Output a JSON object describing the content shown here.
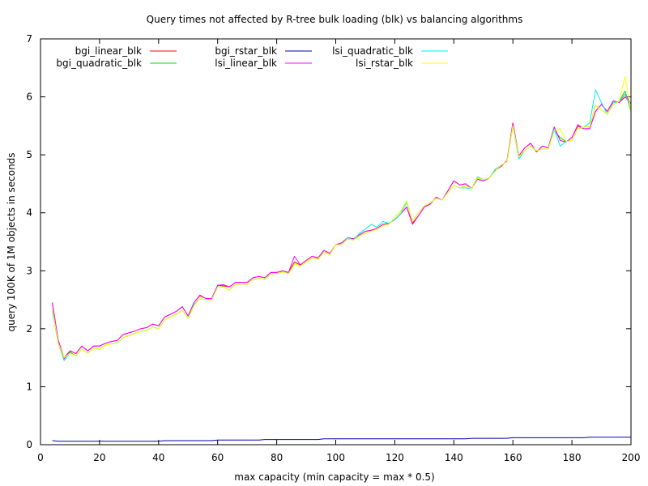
{
  "chart_data": {
    "type": "line",
    "title": "Query times not affected by R-tree bulk loading (blk) vs balancing algorithms",
    "xlabel": "max capacity (min capacity = max * 0.5)",
    "ylabel": "query 100K of 1M objects in seconds",
    "xlim": [
      0,
      200
    ],
    "ylim": [
      0,
      7
    ],
    "xticks": [
      0,
      20,
      40,
      60,
      80,
      100,
      120,
      140,
      160,
      180,
      200
    ],
    "yticks": [
      0,
      1,
      2,
      3,
      4,
      5,
      6,
      7
    ],
    "grid": false,
    "legend_position": "top-left",
    "x": [
      4,
      6,
      8,
      10,
      12,
      14,
      16,
      18,
      20,
      22,
      24,
      26,
      28,
      30,
      32,
      34,
      36,
      38,
      40,
      42,
      44,
      46,
      48,
      50,
      52,
      54,
      56,
      58,
      60,
      62,
      64,
      66,
      68,
      70,
      72,
      74,
      76,
      78,
      80,
      82,
      84,
      86,
      88,
      90,
      92,
      94,
      96,
      98,
      100,
      102,
      104,
      106,
      108,
      110,
      112,
      114,
      116,
      118,
      120,
      122,
      124,
      126,
      128,
      130,
      132,
      134,
      136,
      138,
      140,
      142,
      144,
      146,
      148,
      150,
      152,
      154,
      156,
      158,
      160,
      162,
      164,
      166,
      168,
      170,
      172,
      174,
      176,
      178,
      180,
      182,
      184,
      186,
      188,
      190,
      192,
      194,
      196,
      198,
      200
    ],
    "series": [
      {
        "name": "bgi_linear_blk",
        "color": "#ff0000",
        "values": [
          2.45,
          1.8,
          1.5,
          1.62,
          1.57,
          1.7,
          1.62,
          1.7,
          1.7,
          1.75,
          1.78,
          1.8,
          1.9,
          1.93,
          1.96,
          2.0,
          2.02,
          2.08,
          2.05,
          2.2,
          2.25,
          2.3,
          2.38,
          2.22,
          2.45,
          2.57,
          2.52,
          2.52,
          2.75,
          2.74,
          2.72,
          2.8,
          2.8,
          2.8,
          2.88,
          2.9,
          2.88,
          2.97,
          2.97,
          3.0,
          2.97,
          3.15,
          3.1,
          3.18,
          3.25,
          3.22,
          3.35,
          3.3,
          3.45,
          3.48,
          3.57,
          3.55,
          3.62,
          3.68,
          3.7,
          3.73,
          3.8,
          3.82,
          3.88,
          3.98,
          4.1,
          3.82,
          3.95,
          4.1,
          4.15,
          4.27,
          4.22,
          4.38,
          4.55,
          4.48,
          4.5,
          4.42,
          4.58,
          4.55,
          4.6,
          4.73,
          4.8,
          4.9,
          5.55,
          4.98,
          5.12,
          5.2,
          5.05,
          5.15,
          5.12,
          5.48,
          5.25,
          5.22,
          5.3,
          5.5,
          5.45,
          5.45,
          5.75,
          5.87,
          5.75,
          5.93,
          5.9,
          6.0,
          5.88
        ]
      },
      {
        "name": "bgi_quadratic_blk",
        "color": "#00dd00",
        "values": [
          2.35,
          1.75,
          1.5,
          1.6,
          1.53,
          1.65,
          1.58,
          1.67,
          1.65,
          1.72,
          1.74,
          1.76,
          1.85,
          1.88,
          1.92,
          1.95,
          1.97,
          2.03,
          2.0,
          2.15,
          2.2,
          2.25,
          2.32,
          2.18,
          2.4,
          2.52,
          2.5,
          2.5,
          2.72,
          2.72,
          2.67,
          2.77,
          2.77,
          2.77,
          2.85,
          2.87,
          2.85,
          2.95,
          2.95,
          2.98,
          2.95,
          3.12,
          3.08,
          3.15,
          3.22,
          3.2,
          3.32,
          3.28,
          3.45,
          3.45,
          3.55,
          3.53,
          3.6,
          3.65,
          3.68,
          3.72,
          3.78,
          3.8,
          3.92,
          4.02,
          4.2,
          3.85,
          4.0,
          4.12,
          4.17,
          4.25,
          4.22,
          4.35,
          4.48,
          4.43,
          4.47,
          4.42,
          4.6,
          4.57,
          4.6,
          4.72,
          4.82,
          4.88,
          5.5,
          4.97,
          5.07,
          5.15,
          5.07,
          5.1,
          5.1,
          5.42,
          5.3,
          5.23,
          5.25,
          5.45,
          5.48,
          5.48,
          5.85,
          5.78,
          5.7,
          5.87,
          5.92,
          6.1,
          5.75
        ]
      },
      {
        "name": "bgi_rstar_blk",
        "color": "#0000aa",
        "values": [
          0.07,
          0.06,
          0.06,
          0.06,
          0.06,
          0.06,
          0.06,
          0.06,
          0.06,
          0.06,
          0.06,
          0.06,
          0.06,
          0.06,
          0.06,
          0.06,
          0.06,
          0.06,
          0.06,
          0.07,
          0.07,
          0.07,
          0.07,
          0.07,
          0.07,
          0.07,
          0.07,
          0.07,
          0.08,
          0.08,
          0.08,
          0.08,
          0.08,
          0.08,
          0.08,
          0.08,
          0.09,
          0.09,
          0.09,
          0.09,
          0.09,
          0.09,
          0.09,
          0.09,
          0.09,
          0.09,
          0.1,
          0.1,
          0.1,
          0.1,
          0.1,
          0.1,
          0.1,
          0.1,
          0.1,
          0.1,
          0.1,
          0.1,
          0.1,
          0.1,
          0.1,
          0.1,
          0.1,
          0.1,
          0.1,
          0.1,
          0.1,
          0.1,
          0.1,
          0.1,
          0.1,
          0.11,
          0.11,
          0.11,
          0.11,
          0.11,
          0.11,
          0.11,
          0.12,
          0.12,
          0.12,
          0.12,
          0.12,
          0.12,
          0.12,
          0.12,
          0.12,
          0.12,
          0.12,
          0.12,
          0.12,
          0.13,
          0.13,
          0.13,
          0.13,
          0.13,
          0.13,
          0.13,
          0.13
        ]
      },
      {
        "name": "lsi_linear_blk",
        "color": "#ff00ff",
        "values": [
          2.45,
          1.8,
          1.48,
          1.62,
          1.57,
          1.7,
          1.62,
          1.7,
          1.7,
          1.75,
          1.78,
          1.8,
          1.9,
          1.93,
          1.96,
          2.0,
          2.02,
          2.08,
          2.05,
          2.2,
          2.25,
          2.3,
          2.38,
          2.22,
          2.45,
          2.58,
          2.52,
          2.52,
          2.75,
          2.76,
          2.72,
          2.8,
          2.8,
          2.8,
          2.88,
          2.9,
          2.88,
          2.97,
          2.97,
          3.0,
          2.97,
          3.25,
          3.1,
          3.18,
          3.25,
          3.22,
          3.35,
          3.3,
          3.45,
          3.48,
          3.57,
          3.55,
          3.62,
          3.68,
          3.7,
          3.73,
          3.8,
          3.82,
          3.88,
          3.98,
          4.1,
          3.8,
          3.95,
          4.1,
          4.15,
          4.27,
          4.22,
          4.38,
          4.55,
          4.48,
          4.5,
          4.42,
          4.58,
          4.55,
          4.6,
          4.73,
          4.8,
          4.9,
          5.55,
          4.98,
          5.12,
          5.2,
          5.05,
          5.15,
          5.12,
          5.48,
          5.25,
          5.22,
          5.3,
          5.52,
          5.45,
          5.45,
          5.75,
          5.87,
          5.75,
          5.93,
          5.9,
          6.05,
          5.88
        ]
      },
      {
        "name": "lsi_quadratic_blk",
        "color": "#00eeee",
        "values": [
          2.3,
          1.75,
          1.45,
          1.58,
          1.53,
          1.65,
          1.58,
          1.67,
          1.65,
          1.72,
          1.74,
          1.76,
          1.85,
          1.88,
          1.92,
          1.95,
          1.97,
          2.03,
          2.0,
          2.15,
          2.2,
          2.25,
          2.32,
          2.18,
          2.42,
          2.52,
          2.5,
          2.5,
          2.72,
          2.72,
          2.67,
          2.77,
          2.77,
          2.77,
          2.85,
          2.87,
          2.85,
          2.95,
          2.95,
          2.98,
          2.95,
          3.12,
          3.08,
          3.15,
          3.22,
          3.2,
          3.32,
          3.28,
          3.45,
          3.45,
          3.57,
          3.53,
          3.65,
          3.72,
          3.8,
          3.75,
          3.85,
          3.82,
          3.88,
          3.98,
          4.18,
          3.85,
          4.0,
          4.12,
          4.17,
          4.25,
          4.22,
          4.35,
          4.48,
          4.43,
          4.43,
          4.42,
          4.62,
          4.57,
          4.6,
          4.75,
          4.82,
          4.88,
          5.5,
          4.93,
          5.07,
          5.15,
          5.07,
          5.1,
          5.1,
          5.45,
          5.15,
          5.23,
          5.25,
          5.45,
          5.48,
          5.55,
          6.12,
          5.9,
          5.7,
          5.9,
          5.92,
          6.05,
          5.8
        ]
      },
      {
        "name": "lsi_rstar_blk",
        "color": "#ffff00",
        "values": [
          2.35,
          1.75,
          1.5,
          1.58,
          1.53,
          1.65,
          1.58,
          1.67,
          1.65,
          1.72,
          1.74,
          1.76,
          1.85,
          1.88,
          1.92,
          1.95,
          1.97,
          2.03,
          2.0,
          2.15,
          2.2,
          2.25,
          2.32,
          2.18,
          2.4,
          2.52,
          2.5,
          2.5,
          2.72,
          2.72,
          2.67,
          2.77,
          2.77,
          2.77,
          2.85,
          2.87,
          2.85,
          2.95,
          2.95,
          2.98,
          2.95,
          3.12,
          3.08,
          3.15,
          3.22,
          3.2,
          3.32,
          3.28,
          3.45,
          3.45,
          3.55,
          3.53,
          3.6,
          3.65,
          3.68,
          3.72,
          3.78,
          3.8,
          3.92,
          4.02,
          4.2,
          3.85,
          4.0,
          4.12,
          4.17,
          4.25,
          4.22,
          4.35,
          4.48,
          4.43,
          4.47,
          4.42,
          4.6,
          4.57,
          4.6,
          4.72,
          4.82,
          4.88,
          5.5,
          4.97,
          5.07,
          5.15,
          5.07,
          5.1,
          5.1,
          5.42,
          5.45,
          5.23,
          5.25,
          5.45,
          5.48,
          5.48,
          5.85,
          5.78,
          5.7,
          5.87,
          5.92,
          6.35,
          5.75
        ]
      }
    ]
  }
}
